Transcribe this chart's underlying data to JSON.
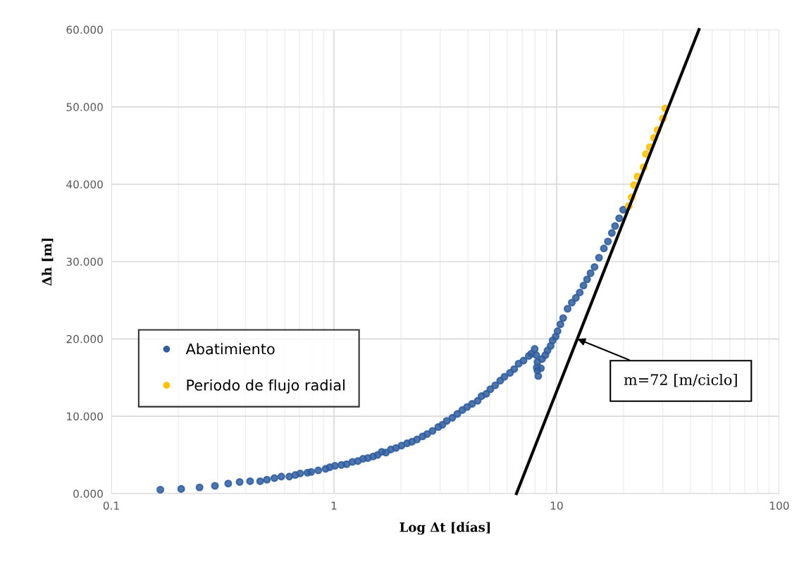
{
  "chart_data": {
    "type": "scatter",
    "xlabel": "Log Δt [días]",
    "ylabel": "Δh [m]",
    "log": "x",
    "xlim": [
      0.1,
      100
    ],
    "xticks": [
      0.1,
      1,
      10,
      100
    ],
    "ylim": [
      0,
      60
    ],
    "yticks": [
      {
        "value": 0,
        "label": "0.000"
      },
      {
        "value": 10,
        "label": "10.000"
      },
      {
        "value": 20,
        "label": "20.000"
      },
      {
        "value": 30,
        "label": "30.000"
      },
      {
        "value": 40,
        "label": "40.000"
      },
      {
        "value": 50,
        "label": "50.000"
      },
      {
        "value": 60,
        "label": "60.000"
      }
    ],
    "grid": true,
    "legend": "left",
    "marker": "circle",
    "series": [
      {
        "name": "Abatimiento",
        "color": "#2f5d9e",
        "x": [
          0.166,
          0.206,
          0.249,
          0.292,
          0.335,
          0.377,
          0.42,
          0.466,
          0.5,
          0.54,
          0.58,
          0.63,
          0.67,
          0.705,
          0.76,
          0.79,
          0.85,
          0.917,
          0.957,
          1.01,
          1.08,
          1.14,
          1.21,
          1.28,
          1.35,
          1.42,
          1.5,
          1.57,
          1.64,
          1.71,
          1.8,
          1.9,
          2.01,
          2.13,
          2.24,
          2.36,
          2.5,
          2.62,
          2.77,
          2.94,
          3.07,
          3.21,
          3.4,
          3.58,
          3.77,
          3.96,
          4.17,
          4.42,
          4.6,
          4.83,
          5.04,
          5.3,
          5.58,
          5.83,
          6.17,
          6.45,
          6.75,
          7.1,
          7.5,
          7.7,
          7.97,
          8.1,
          8.2,
          8.14,
          8.2,
          8.27,
          8.5,
          8.6,
          8.9,
          9.1,
          9.4,
          9.6,
          9.9,
          10.1,
          10.4,
          10.7,
          11.2,
          11.7,
          12.2,
          12.7,
          13.2,
          13.7,
          14.2,
          14.8,
          15.5,
          16.3,
          17.0,
          17.7,
          18.3,
          19.1,
          19.9
        ],
        "values": [
          0.5,
          0.6,
          0.8,
          1.0,
          1.3,
          1.5,
          1.6,
          1.6,
          1.8,
          2.0,
          2.2,
          2.2,
          2.4,
          2.6,
          2.7,
          2.8,
          3.0,
          3.2,
          3.4,
          3.6,
          3.7,
          3.8,
          4.1,
          4.2,
          4.5,
          4.6,
          4.8,
          5.0,
          5.4,
          5.3,
          5.7,
          5.9,
          6.2,
          6.5,
          6.7,
          7.0,
          7.4,
          7.7,
          8.1,
          8.6,
          8.9,
          9.4,
          9.8,
          10.3,
          10.8,
          11.2,
          11.6,
          12.0,
          12.6,
          12.9,
          13.5,
          14.0,
          14.6,
          15.1,
          15.6,
          16.1,
          16.8,
          17.2,
          17.8,
          18.1,
          18.7,
          17.9,
          17.0,
          16.3,
          15.9,
          15.2,
          16.2,
          17.4,
          17.9,
          18.5,
          19.1,
          19.8,
          20.3,
          21.0,
          21.9,
          22.7,
          23.9,
          24.7,
          25.3,
          26.0,
          26.9,
          27.7,
          28.5,
          29.3,
          30.5,
          31.7,
          32.6,
          33.7,
          34.6,
          35.6,
          36.7
        ]
      },
      {
        "name": "Periodo de flujo radial",
        "color": "#ffc000",
        "x": [
          21.1,
          21.7,
          22.3,
          23.1,
          24.6,
          25.2,
          26.2,
          27.4,
          28.4,
          30.0,
          30.8
        ],
        "values": [
          37.2,
          38.3,
          39.9,
          41.0,
          42.2,
          43.9,
          44.8,
          46.0,
          47.0,
          48.5,
          49.8
        ]
      },
      {
        "type": "line",
        "marker": "none",
        "color": "#000000",
        "x": [
          6.6,
          43.6
        ],
        "values": [
          0,
          60
        ]
      }
    ],
    "annotations": [
      {
        "text": "m=72 [m/ciclo]",
        "x": 12.4,
        "y": 20
      }
    ]
  }
}
